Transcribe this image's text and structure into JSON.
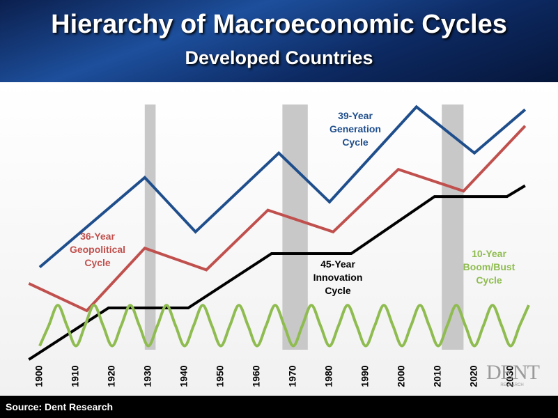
{
  "chart_data": {
    "type": "line",
    "title": "Hierarchy of Macroeconomic Cycles",
    "subtitle": "Developed Countries",
    "source": "Source: Dent  Research",
    "logo": "DENT",
    "logo_sub": "RESEARCH",
    "xlim": [
      1897,
      2035
    ],
    "ylim": [
      0,
      100
    ],
    "xticks": [
      1900,
      1910,
      1920,
      1930,
      1940,
      1950,
      1960,
      1970,
      1980,
      1990,
      2000,
      2010,
      2020,
      2030
    ],
    "shaded_periods": [
      [
        1929,
        1932
      ],
      [
        1967,
        1974
      ],
      [
        2011,
        2017
      ]
    ],
    "series": [
      {
        "name": "39-Year Generation Cycle",
        "color": "#1f4e8c",
        "x": [
          1900,
          1929,
          1943,
          1966,
          1980,
          2004,
          2020,
          2034
        ],
        "values": [
          35,
          68,
          48,
          77,
          59,
          94,
          77,
          93
        ]
      },
      {
        "name": "36-Year Geopolitical Cycle",
        "color": "#c0504d",
        "x": [
          1897,
          1913,
          1929,
          1946,
          1963,
          1981,
          1999,
          2017,
          2034
        ],
        "values": [
          29,
          19,
          42,
          34,
          56,
          48,
          71,
          63,
          87
        ]
      },
      {
        "name": "45-Year Innovation Cycle",
        "color": "#000000",
        "x": [
          1897,
          1919,
          1941,
          1964,
          1986,
          2009,
          2029,
          2034
        ],
        "values": [
          1,
          20,
          20,
          40,
          40,
          61,
          61,
          65
        ]
      },
      {
        "name": "10-Year Boom/Bust Cycle",
        "color": "#8fbc50",
        "smooth": true,
        "x": [
          1900,
          1902.5,
          1905,
          1907.5,
          1910,
          1912.5,
          1915,
          1917.5,
          1920,
          1922.5,
          1925,
          1927.5,
          1930,
          1932.5,
          1935,
          1937.5,
          1940,
          1942.5,
          1945,
          1947.5,
          1950,
          1952.5,
          1955,
          1957.5,
          1960,
          1962.5,
          1965,
          1967.5,
          1970,
          1972.5,
          1975,
          1977.5,
          1980,
          1982.5,
          1985,
          1987.5,
          1990,
          1992.5,
          1995,
          1997.5,
          2000,
          2002.5,
          2005,
          2007.5,
          2010,
          2012.5,
          2015,
          2017.5,
          2020,
          2022.5,
          2025,
          2027.5,
          2030,
          2032.5,
          2035
        ],
        "values": [
          6,
          13.5,
          21,
          13.5,
          6,
          13.5,
          21,
          13.5,
          6,
          13.5,
          21,
          13.5,
          6,
          13.5,
          21,
          13.5,
          6,
          13.5,
          21,
          13.5,
          6,
          13.5,
          21,
          13.5,
          6,
          13.5,
          21,
          13.5,
          6,
          13.5,
          21,
          13.5,
          6,
          13.5,
          21,
          13.5,
          6,
          13.5,
          21,
          13.5,
          6,
          13.5,
          21,
          13.5,
          6,
          13.5,
          21,
          13.5,
          6,
          13.5,
          21,
          13.5,
          6,
          13.5,
          21
        ]
      }
    ]
  }
}
